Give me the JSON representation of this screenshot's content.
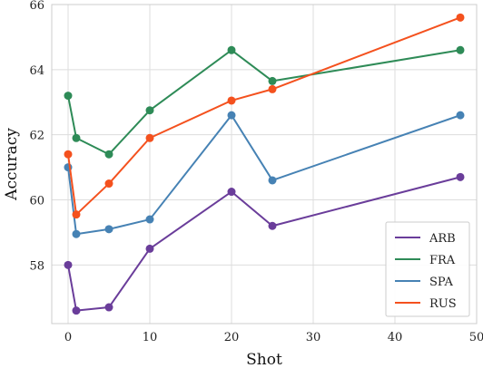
{
  "chart_data": {
    "type": "line",
    "title": "",
    "xlabel": "Shot",
    "ylabel": "Accuracy",
    "xlim": [
      -2,
      50
    ],
    "ylim": [
      56.2,
      66
    ],
    "xticks": [
      0,
      10,
      20,
      30,
      40,
      50
    ],
    "yticks": [
      58,
      60,
      62,
      64,
      66
    ],
    "grid": true,
    "legend_position": "bottom-right",
    "x": [
      0,
      1,
      5,
      10,
      20,
      25,
      48
    ],
    "series": [
      {
        "name": "ARB",
        "color": "#6a3d9a",
        "values": [
          58.0,
          56.6,
          56.7,
          58.5,
          60.25,
          59.2,
          60.7
        ]
      },
      {
        "name": "FRA",
        "color": "#2e8b57",
        "values": [
          63.2,
          61.9,
          61.4,
          62.75,
          64.6,
          63.65,
          64.6
        ]
      },
      {
        "name": "SPA",
        "color": "#4682b4",
        "values": [
          61.0,
          58.95,
          59.1,
          59.4,
          62.6,
          60.6,
          62.6
        ]
      },
      {
        "name": "RUS",
        "color": "#f4511e",
        "values": [
          61.4,
          59.55,
          60.5,
          61.9,
          63.05,
          63.4,
          65.6
        ]
      }
    ]
  }
}
